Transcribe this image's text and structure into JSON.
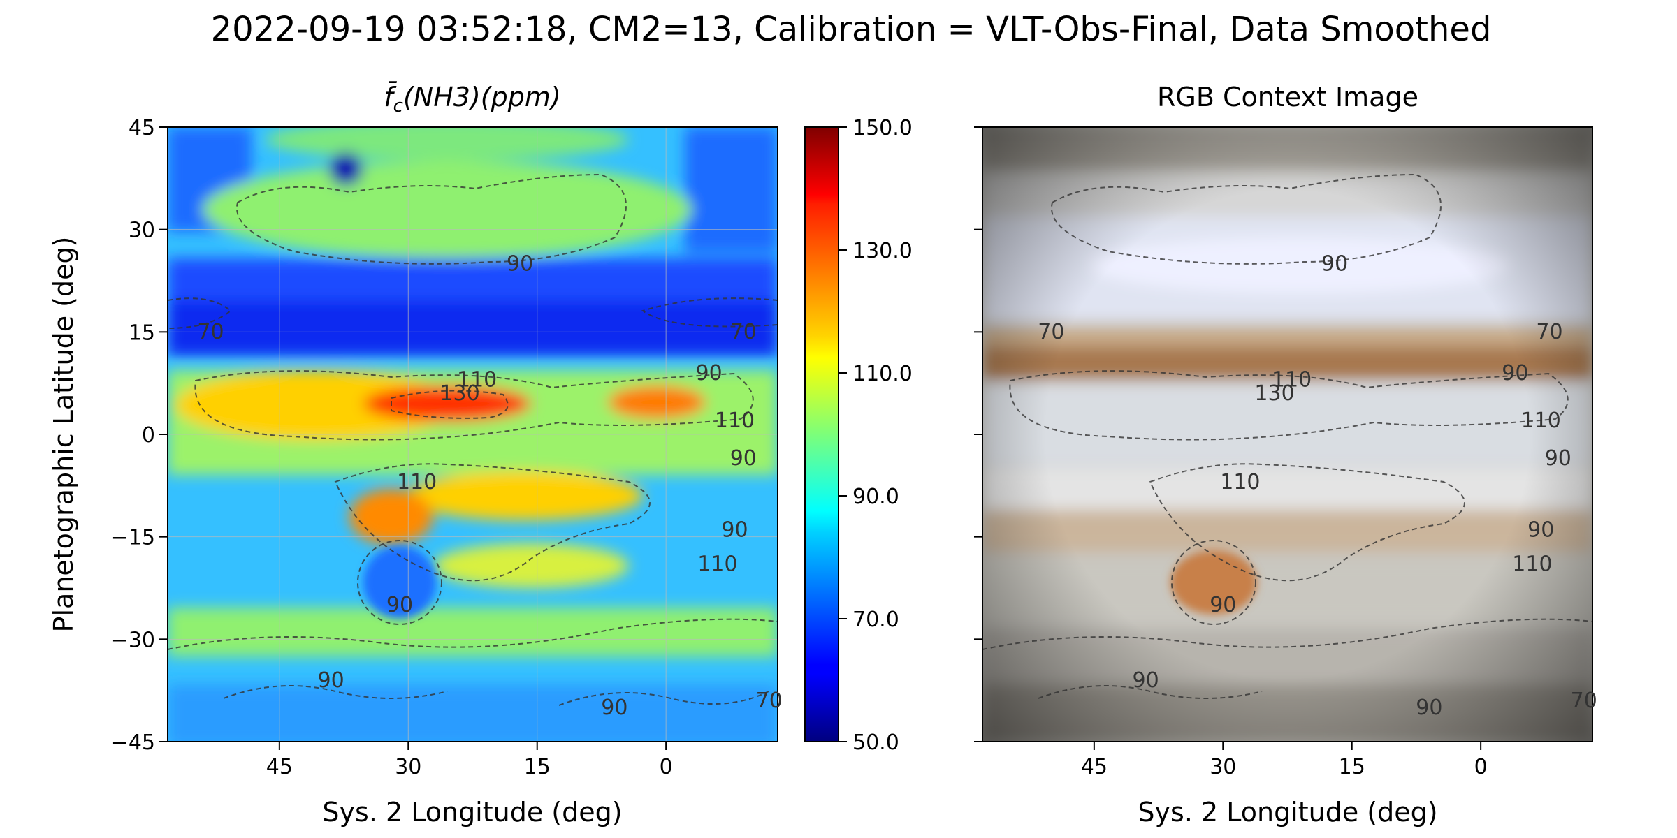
{
  "figure": {
    "suptitle": "2022-09-19 03:52:18, CM2=13, Calibration = VLT-Obs-Final, Data Smoothed"
  },
  "chart_data": [
    {
      "type": "heatmap",
      "title_prefix": "f̄",
      "title_sub": "c",
      "title_rest": "(NH3)(ppm)",
      "xlabel": "Sys. 2 Longitude (deg)",
      "ylabel": "Planetographic Latitude (deg)",
      "xlim": [
        58,
        -13
      ],
      "ylim": [
        -45,
        45
      ],
      "xticks": [
        45,
        30,
        15,
        0
      ],
      "yticks": [
        45,
        30,
        15,
        0,
        -15,
        -30,
        -45
      ],
      "ytick_labels": [
        "45",
        "30",
        "15",
        "0",
        "−15",
        "−30",
        "−45"
      ],
      "grid": true,
      "colormap": "jet",
      "colorbar": {
        "range": [
          50.0,
          150.0
        ],
        "ticks": [
          "150.0",
          "130.0",
          "110.0",
          "90.0",
          "70.0",
          "50.0"
        ]
      },
      "contour_levels": [
        70,
        90,
        110,
        130
      ],
      "contour_labels": [
        {
          "text": "90",
          "lon": 17,
          "lat": 24
        },
        {
          "text": "70",
          "lon": 53,
          "lat": 14
        },
        {
          "text": "70",
          "lon": -9,
          "lat": 14
        },
        {
          "text": "110",
          "lon": 22,
          "lat": 7
        },
        {
          "text": "130",
          "lon": 24,
          "lat": 5
        },
        {
          "text": "90",
          "lon": -5,
          "lat": 8
        },
        {
          "text": "110",
          "lon": -8,
          "lat": 1
        },
        {
          "text": "90",
          "lon": -9,
          "lat": -4.5
        },
        {
          "text": "110",
          "lon": 29,
          "lat": -8
        },
        {
          "text": "90",
          "lon": -8,
          "lat": -15
        },
        {
          "text": "110",
          "lon": -6,
          "lat": -20
        },
        {
          "text": "90",
          "lon": 31,
          "lat": -26
        },
        {
          "text": "90",
          "lon": 39,
          "lat": -37
        },
        {
          "text": "90",
          "lon": 6,
          "lat": -41
        },
        {
          "text": "70",
          "lon": -12,
          "lat": -40
        }
      ]
    },
    {
      "type": "image",
      "title": "RGB Context Image",
      "xlabel": "Sys. 2 Longitude (deg)",
      "xlim": [
        58,
        -13
      ],
      "ylim": [
        -45,
        45
      ],
      "xticks": [
        45,
        30,
        15,
        0
      ],
      "contour_levels": [
        70,
        90,
        110,
        130
      ],
      "contour_labels": [
        {
          "text": "90",
          "lon": 17,
          "lat": 24
        },
        {
          "text": "70",
          "lon": 50,
          "lat": 14
        },
        {
          "text": "70",
          "lon": -8,
          "lat": 14
        },
        {
          "text": "110",
          "lon": 22,
          "lat": 7
        },
        {
          "text": "130",
          "lon": 24,
          "lat": 5
        },
        {
          "text": "90",
          "lon": -4,
          "lat": 8
        },
        {
          "text": "110",
          "lon": -7,
          "lat": 1
        },
        {
          "text": "90",
          "lon": -9,
          "lat": -4.5
        },
        {
          "text": "110",
          "lon": 28,
          "lat": -8
        },
        {
          "text": "90",
          "lon": -7,
          "lat": -15
        },
        {
          "text": "110",
          "lon": -6,
          "lat": -20
        },
        {
          "text": "90",
          "lon": 30,
          "lat": -26
        },
        {
          "text": "90",
          "lon": 39,
          "lat": -37
        },
        {
          "text": "90",
          "lon": 6,
          "lat": -41
        },
        {
          "text": "70",
          "lon": -12,
          "lat": -40
        }
      ]
    }
  ]
}
